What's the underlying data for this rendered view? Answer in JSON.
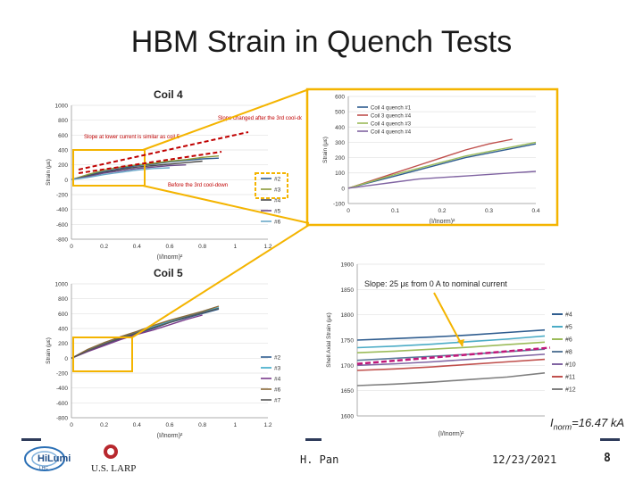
{
  "slide": {
    "title": "HBM Strain in Quench Tests",
    "footer": {
      "author": "H. Pan",
      "date": "12/23/2021",
      "page": "8"
    },
    "imax_label": "I",
    "imax_sub": "norm",
    "imax_value": "=16.47 kA",
    "logos": {
      "hilumi": "HiLumi",
      "hilumi_sub": "LHC",
      "larp": "U.S. LARP"
    }
  },
  "panels": {
    "coil4": {
      "title": "Coil 4",
      "ylabel": "Strain (με)",
      "xlabel": "(I/I",
      "xlabel_sub": "norm",
      "xlabel_tail": ")²",
      "yticks": [
        "1000",
        "800",
        "600",
        "400",
        "200",
        "0",
        "-200",
        "-400",
        "-600",
        "-800"
      ],
      "xticks": [
        "0",
        "0.2",
        "0.4",
        "0.6",
        "0.8",
        "1",
        "1.2"
      ],
      "legend": [
        "#2",
        "#3",
        "#4",
        "#5",
        "#6"
      ],
      "annot1": "Slope at lower current is similar as coil 5",
      "annot2": "Slope changed after the 3rd cool-down",
      "annot3": "Before the 3rd cool-down"
    },
    "coil5": {
      "title": "Coil 5",
      "ylabel": "Strain (με)",
      "xlabel": "(I/I",
      "xlabel_sub": "norm",
      "xlabel_tail": ")²",
      "yticks": [
        "1000",
        "800",
        "600",
        "400",
        "200",
        "0",
        "-200",
        "-400",
        "-600",
        "-800"
      ],
      "xticks": [
        "0",
        "0.2",
        "0.4",
        "0.6",
        "0.8",
        "1",
        "1.2"
      ],
      "legend": [
        "#2",
        "#3",
        "#4",
        "#6",
        "#7"
      ]
    },
    "quench": {
      "ylabel": "Strain (με)",
      "xlabel": "(I/I",
      "xlabel_sub": "norm",
      "xlabel_tail": ")²",
      "yticks": [
        "600",
        "500",
        "400",
        "300",
        "200",
        "100",
        "0",
        "-100"
      ],
      "xticks": [
        "0",
        "0.1",
        "0.2",
        "0.3",
        "0.4"
      ],
      "legend": [
        "Coil 4 quench #1",
        "Coil 3 quench #4",
        "Coil 4 quench #3",
        "Coil 4 quench #4"
      ]
    },
    "shell": {
      "ylabel": "Shell Axial Strain (με)",
      "xlabel": "(I/I",
      "xlabel_sub": "norm",
      "xlabel_tail": ")²",
      "yticks": [
        "1900",
        "1850",
        "1800",
        "1750",
        "1700",
        "1650",
        "1600"
      ],
      "legend": [
        "#4",
        "#5",
        "#6",
        "#8",
        "#10",
        "#11",
        "#12"
      ],
      "annot": "Slope: 25 με from 0 A to nominal current"
    }
  },
  "chart_data": [
    {
      "type": "line",
      "title": "Coil 4",
      "ylabel": "Strain (με)",
      "ylim": [
        -800,
        1000
      ],
      "xlim": [
        0,
        1.2
      ],
      "series": [
        {
          "name": "#2",
          "x": [
            0,
            0.1,
            0.2,
            0.3,
            0.4,
            0.5,
            0.6,
            0.7,
            0.8,
            0.9
          ],
          "values": [
            0,
            60,
            110,
            150,
            190,
            210,
            240,
            260,
            280,
            290
          ]
        },
        {
          "name": "#3",
          "x": [
            0,
            0.1,
            0.2,
            0.3,
            0.4,
            0.5,
            0.6,
            0.7,
            0.8,
            0.9
          ],
          "values": [
            0,
            70,
            130,
            170,
            200,
            220,
            250,
            270,
            300,
            320
          ]
        },
        {
          "name": "#4",
          "x": [
            0,
            0.1,
            0.2,
            0.3,
            0.4,
            0.5,
            0.6,
            0.7,
            0.8
          ],
          "values": [
            0,
            50,
            100,
            140,
            170,
            190,
            210,
            230,
            250
          ]
        },
        {
          "name": "#5",
          "x": [
            0,
            0.1,
            0.2,
            0.3,
            0.4,
            0.5,
            0.6,
            0.7
          ],
          "values": [
            0,
            40,
            90,
            120,
            150,
            170,
            190,
            200
          ]
        },
        {
          "name": "#6",
          "x": [
            0,
            0.1,
            0.2,
            0.3,
            0.4,
            0.5,
            0.6
          ],
          "values": [
            0,
            30,
            70,
            100,
            130,
            150,
            160
          ]
        }
      ]
    },
    {
      "type": "line",
      "title": "Coil 5",
      "ylabel": "Strain (με)",
      "ylim": [
        -800,
        1000
      ],
      "xlim": [
        0,
        1.2
      ],
      "series": [
        {
          "name": "#2",
          "x": [
            0,
            0.1,
            0.2,
            0.3,
            0.4,
            0.5,
            0.6,
            0.7,
            0.8,
            0.9
          ],
          "values": [
            0,
            100,
            180,
            260,
            330,
            400,
            480,
            540,
            600,
            660
          ]
        },
        {
          "name": "#3",
          "x": [
            0,
            0.1,
            0.2,
            0.3,
            0.4,
            0.5,
            0.6,
            0.7,
            0.8,
            0.9
          ],
          "values": [
            0,
            110,
            200,
            280,
            350,
            420,
            500,
            560,
            620,
            680
          ]
        },
        {
          "name": "#4",
          "x": [
            0,
            0.1,
            0.2,
            0.3,
            0.4,
            0.5,
            0.6,
            0.7,
            0.8
          ],
          "values": [
            0,
            90,
            170,
            250,
            320,
            380,
            450,
            520,
            580
          ]
        },
        {
          "name": "#6",
          "x": [
            0,
            0.1,
            0.2,
            0.3,
            0.4,
            0.5,
            0.6,
            0.7,
            0.8,
            0.9
          ],
          "values": [
            0,
            120,
            210,
            290,
            360,
            440,
            510,
            570,
            630,
            700
          ]
        },
        {
          "name": "#7",
          "x": [
            0,
            0.1,
            0.2,
            0.3,
            0.4,
            0.5,
            0.6,
            0.7,
            0.8,
            0.9
          ],
          "values": [
            0,
            100,
            190,
            270,
            340,
            410,
            480,
            550,
            610,
            670
          ]
        }
      ]
    },
    {
      "type": "line",
      "ylabel": "Strain (με)",
      "ylim": [
        -100,
        600
      ],
      "xlim": [
        0,
        0.4
      ],
      "series": [
        {
          "name": "Coil 4 quench #1",
          "x": [
            0,
            0.05,
            0.1,
            0.15,
            0.2,
            0.25,
            0.3,
            0.35,
            0.4
          ],
          "values": [
            0,
            40,
            80,
            120,
            160,
            200,
            230,
            260,
            290
          ]
        },
        {
          "name": "Coil 3 quench #4",
          "x": [
            0,
            0.05,
            0.1,
            0.15,
            0.2,
            0.25,
            0.3,
            0.35
          ],
          "values": [
            0,
            50,
            100,
            150,
            200,
            250,
            290,
            320
          ]
        },
        {
          "name": "Coil 4 quench #3",
          "x": [
            0,
            0.05,
            0.1,
            0.15,
            0.2,
            0.25,
            0.3,
            0.35,
            0.4
          ],
          "values": [
            0,
            45,
            90,
            130,
            170,
            210,
            240,
            270,
            300
          ]
        },
        {
          "name": "Coil 4 quench #4",
          "x": [
            0,
            0.05,
            0.1,
            0.15,
            0.2,
            0.25,
            0.3,
            0.35,
            0.4
          ],
          "values": [
            0,
            20,
            40,
            60,
            70,
            80,
            90,
            100,
            110
          ]
        }
      ]
    },
    {
      "type": "line",
      "ylabel": "Shell Axial Strain (με)",
      "ylim": [
        1600,
        1900
      ],
      "xlim": [
        0,
        1
      ],
      "series": [
        {
          "name": "#4",
          "x": [
            0,
            0.2,
            0.4,
            0.6,
            0.8,
            1
          ],
          "values": [
            1750,
            1753,
            1756,
            1760,
            1765,
            1770
          ]
        },
        {
          "name": "#5",
          "x": [
            0,
            0.2,
            0.4,
            0.6,
            0.8,
            1
          ],
          "values": [
            1735,
            1738,
            1742,
            1747,
            1752,
            1758
          ]
        },
        {
          "name": "#6",
          "x": [
            0,
            0.2,
            0.4,
            0.6,
            0.8,
            1
          ],
          "values": [
            1725,
            1728,
            1732,
            1736,
            1741,
            1746
          ]
        },
        {
          "name": "#8",
          "x": [
            0,
            0.2,
            0.4,
            0.6,
            0.8,
            1
          ],
          "values": [
            1710,
            1714,
            1718,
            1722,
            1727,
            1732
          ]
        },
        {
          "name": "#10",
          "x": [
            0,
            0.2,
            0.4,
            0.6,
            0.8,
            1
          ],
          "values": [
            1700,
            1703,
            1707,
            1712,
            1717,
            1722
          ]
        },
        {
          "name": "#11",
          "x": [
            0,
            0.2,
            0.4,
            0.6,
            0.8,
            1
          ],
          "values": [
            1690,
            1693,
            1697,
            1702,
            1707,
            1712
          ]
        },
        {
          "name": "#12",
          "x": [
            0,
            0.2,
            0.4,
            0.6,
            0.8,
            1
          ],
          "values": [
            1660,
            1663,
            1667,
            1672,
            1677,
            1685
          ]
        }
      ]
    }
  ]
}
